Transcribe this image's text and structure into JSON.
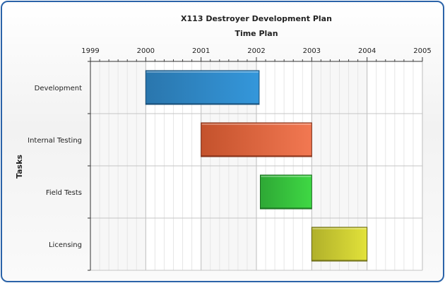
{
  "chart_data": {
    "type": "gantt",
    "title": "X113 Destroyer Development Plan",
    "xlabel": "Time Plan",
    "ylabel": "Tasks",
    "xlim": [
      1999,
      2005
    ],
    "x_ticks": [
      "1999",
      "2000",
      "2001",
      "2002",
      "2003",
      "2004",
      "2005"
    ],
    "grid": true,
    "tasks": [
      {
        "name": "Development",
        "start": 2000.0,
        "end": 2002.05,
        "color_start": "#2a76ad",
        "color_end": "#3497db",
        "border": "#164a72"
      },
      {
        "name": "Internal Testing",
        "start": 2001.0,
        "end": 2003.0,
        "color_start": "#c4522c",
        "color_end": "#f27852",
        "border": "#7a2a12"
      },
      {
        "name": "Field Tests",
        "start": 2002.07,
        "end": 2003.0,
        "color_start": "#2ea835",
        "color_end": "#3fd844",
        "border": "#1a6b1f"
      },
      {
        "name": "Licensing",
        "start": 2003.0,
        "end": 2004.0,
        "color_start": "#b0b02a",
        "color_end": "#e2e23a",
        "border": "#666616"
      }
    ]
  }
}
